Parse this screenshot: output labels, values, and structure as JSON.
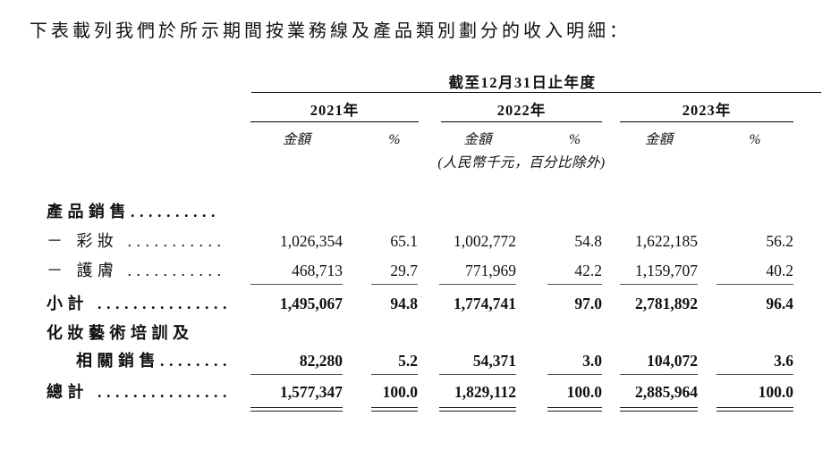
{
  "intro": "下表載列我們於所示期間按業務線及產品類別劃分的收入明細：",
  "table": {
    "period_header": "截至12月31日止年度",
    "years": [
      "2021年",
      "2022年",
      "2023年"
    ],
    "amount_label": "金額",
    "percent_label": "%",
    "unit_note": "(人民幣千元，百分比除外)",
    "rows": [
      {
        "label": "產品銷售.........."
      },
      {
        "label": "－ 彩妝 ...........",
        "values": [
          "1,026,354",
          "65.1",
          "1,002,772",
          "54.8",
          "1,622,185",
          "56.2"
        ]
      },
      {
        "label": "－ 護膚 ...........",
        "values": [
          "468,713",
          "29.7",
          "771,969",
          "42.2",
          "1,159,707",
          "40.2"
        ]
      },
      {
        "label": "小計 ...............",
        "values": [
          "1,495,067",
          "94.8",
          "1,774,741",
          "97.0",
          "2,781,892",
          "96.4"
        ]
      },
      {
        "label": "化妝藝術培訓及"
      },
      {
        "label": "相關銷售........",
        "values": [
          "82,280",
          "5.2",
          "54,371",
          "3.0",
          "104,072",
          "3.6"
        ]
      },
      {
        "label": "總計 ...............",
        "values": [
          "1,577,347",
          "100.0",
          "1,829,112",
          "100.0",
          "2,885,964",
          "100.0"
        ]
      }
    ]
  }
}
